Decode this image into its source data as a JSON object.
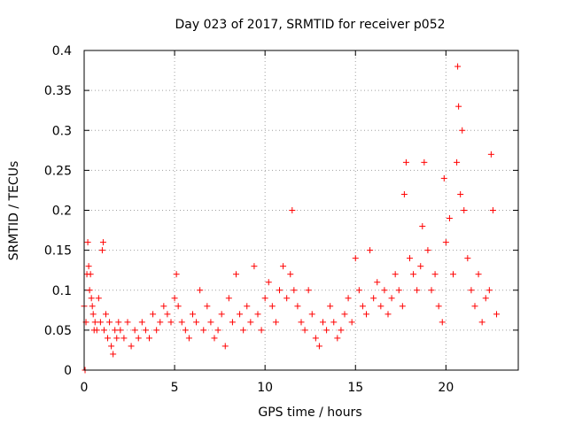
{
  "chart_data": {
    "type": "scatter",
    "title": "Day 023 of 2017, SRMTID for receiver p052",
    "xlabel": "GPS time / hours",
    "ylabel": "SRMTID / TECUs",
    "xlim": [
      0,
      24
    ],
    "ylim": [
      0,
      0.4
    ],
    "xticks": [
      0,
      5,
      10,
      15,
      20
    ],
    "xtick_labels": [
      "0",
      "5",
      "10",
      "15",
      "20"
    ],
    "yticks": [
      0,
      0.05,
      0.1,
      0.15,
      0.2,
      0.25,
      0.3,
      0.35,
      0.4
    ],
    "ytick_labels": [
      "0",
      "0.05",
      "0.1",
      "0.15",
      "0.2",
      "0.25",
      "0.3",
      "0.35",
      "0.4"
    ],
    "grid": true,
    "marker": "+",
    "color": "#ff0000",
    "series": [
      {
        "name": "SRMTID p052",
        "x": [
          0.0,
          0.05,
          0.1,
          0.15,
          0.2,
          0.25,
          0.3,
          0.35,
          0.4,
          0.45,
          0.5,
          0.55,
          0.6,
          0.7,
          0.8,
          0.9,
          1.0,
          1.05,
          1.1,
          1.2,
          1.3,
          1.4,
          1.5,
          1.6,
          1.7,
          1.8,
          1.9,
          2.0,
          2.2,
          2.4,
          2.6,
          2.8,
          3.0,
          3.2,
          3.4,
          3.6,
          3.8,
          4.0,
          4.2,
          4.4,
          4.6,
          4.8,
          5.0,
          5.1,
          5.2,
          5.4,
          5.6,
          5.8,
          6.0,
          6.2,
          6.4,
          6.6,
          6.8,
          7.0,
          7.2,
          7.4,
          7.6,
          7.8,
          8.0,
          8.2,
          8.4,
          8.6,
          8.8,
          9.0,
          9.2,
          9.4,
          9.6,
          9.8,
          10.0,
          10.2,
          10.4,
          10.6,
          10.8,
          11.0,
          11.2,
          11.4,
          11.5,
          11.6,
          11.8,
          12.0,
          12.2,
          12.4,
          12.6,
          12.8,
          13.0,
          13.2,
          13.4,
          13.6,
          13.8,
          14.0,
          14.2,
          14.4,
          14.6,
          14.8,
          15.0,
          15.2,
          15.4,
          15.6,
          15.8,
          16.0,
          16.2,
          16.4,
          16.6,
          16.8,
          17.0,
          17.2,
          17.4,
          17.6,
          17.7,
          17.8,
          18.0,
          18.2,
          18.4,
          18.6,
          18.7,
          18.8,
          19.0,
          19.2,
          19.4,
          19.6,
          19.8,
          19.9,
          20.0,
          20.2,
          20.4,
          20.6,
          20.65,
          20.7,
          20.8,
          20.9,
          21.0,
          21.2,
          21.4,
          21.6,
          21.8,
          22.0,
          22.2,
          22.4,
          22.5,
          22.6,
          22.8
        ],
        "y": [
          0.08,
          0.0,
          0.06,
          0.12,
          0.16,
          0.13,
          0.1,
          0.12,
          0.09,
          0.08,
          0.07,
          0.05,
          0.06,
          0.05,
          0.09,
          0.06,
          0.15,
          0.16,
          0.05,
          0.07,
          0.04,
          0.06,
          0.03,
          0.02,
          0.05,
          0.04,
          0.06,
          0.05,
          0.04,
          0.06,
          0.03,
          0.05,
          0.04,
          0.06,
          0.05,
          0.04,
          0.07,
          0.05,
          0.06,
          0.08,
          0.07,
          0.06,
          0.09,
          0.12,
          0.08,
          0.06,
          0.05,
          0.04,
          0.07,
          0.06,
          0.1,
          0.05,
          0.08,
          0.06,
          0.04,
          0.05,
          0.07,
          0.03,
          0.09,
          0.06,
          0.12,
          0.07,
          0.05,
          0.08,
          0.06,
          0.13,
          0.07,
          0.05,
          0.09,
          0.11,
          0.08,
          0.06,
          0.1,
          0.13,
          0.09,
          0.12,
          0.2,
          0.1,
          0.08,
          0.06,
          0.05,
          0.1,
          0.07,
          0.04,
          0.03,
          0.06,
          0.05,
          0.08,
          0.06,
          0.04,
          0.05,
          0.07,
          0.09,
          0.06,
          0.14,
          0.1,
          0.08,
          0.07,
          0.15,
          0.09,
          0.11,
          0.08,
          0.1,
          0.07,
          0.09,
          0.12,
          0.1,
          0.08,
          0.22,
          0.26,
          0.14,
          0.12,
          0.1,
          0.13,
          0.18,
          0.26,
          0.15,
          0.1,
          0.12,
          0.08,
          0.06,
          0.24,
          0.16,
          0.19,
          0.12,
          0.26,
          0.38,
          0.33,
          0.22,
          0.3,
          0.2,
          0.14,
          0.1,
          0.08,
          0.12,
          0.06,
          0.09,
          0.1,
          0.27,
          0.2,
          0.07
        ]
      }
    ]
  }
}
